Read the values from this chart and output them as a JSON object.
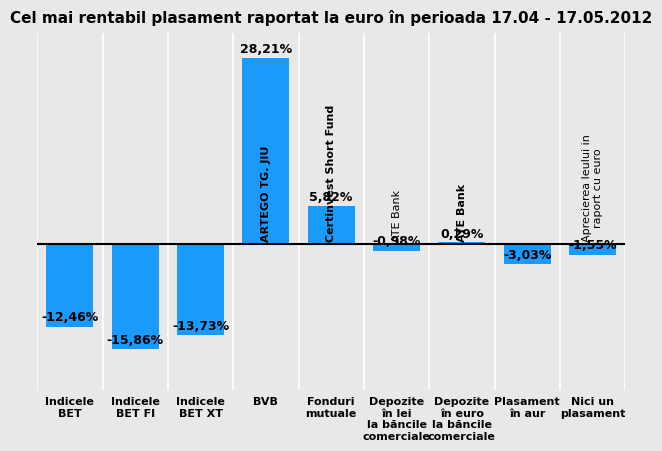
{
  "title": "Cel mai rentabil plasament raportat la euro în perioada 17.04 - 17.05.2012",
  "categories": [
    "Indicele\nBET",
    "Indicele\nBET FI",
    "Indicele\nBET XT",
    "BVB",
    "Fonduri\nmutuale",
    "Depozite\nîn lei\nla băncile\ncomerciale",
    "Depozite\nîn euro\nla băncile\ncomerciale",
    "Plasament\nîn aur",
    "Nici un\nplasament"
  ],
  "values": [
    -12.46,
    -15.86,
    -13.73,
    28.21,
    5.82,
    -0.98,
    0.29,
    -3.03,
    -1.55
  ],
  "bar_labels": [
    "-12,46%",
    "-15,86%",
    "-13,73%",
    "28,21%",
    "5,82%",
    "-0,98%",
    "0,29%",
    "-3,03%",
    "-1,55%"
  ],
  "sublabels": {
    "3": "ARTEGO TG. JIU",
    "4": "Certinvest Short Fund",
    "5": "ATE Bank",
    "6": "ATE Bank",
    "8": "Aprecierea leului in\nraport cu euro"
  },
  "bar_color": "#1a9bfc",
  "background_color": "#e8e8e8",
  "ylim": [
    -22,
    32
  ],
  "zero_line_color": "#000000",
  "title_fontsize": 11,
  "bar_label_fontsize": 9,
  "sublabel_fontsize": 8,
  "cat_label_fontsize": 8
}
